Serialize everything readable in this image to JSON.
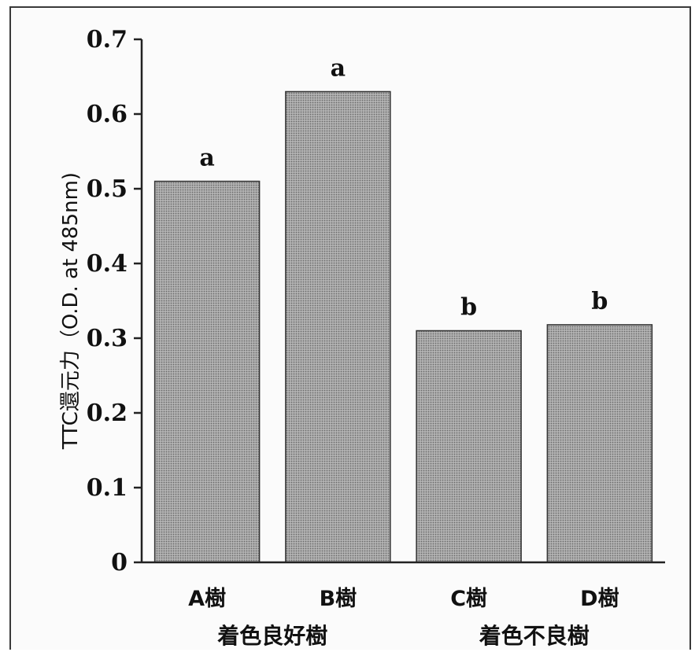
{
  "chart_data": {
    "type": "bar",
    "categories": [
      "A樹",
      "B樹",
      "C樹",
      "D樹"
    ],
    "values": [
      0.51,
      0.63,
      0.31,
      0.318
    ],
    "bar_labels": [
      "a",
      "a",
      "b",
      "b"
    ],
    "groups": [
      {
        "label": "着色良好樹",
        "categories": [
          "A樹",
          "B樹"
        ]
      },
      {
        "label": "着色不良樹",
        "categories": [
          "C樹",
          "D樹"
        ]
      }
    ],
    "title": "",
    "xlabel": "",
    "ylabel": "TTC還元力（O.D. at 485nm)",
    "ylim": [
      0,
      0.7
    ],
    "yticks": [
      "0",
      "0.1",
      "0.2",
      "0.3",
      "0.4",
      "0.5",
      "0.6",
      "0.7"
    ],
    "grid": false,
    "bar_color": "#a3a3a3"
  }
}
